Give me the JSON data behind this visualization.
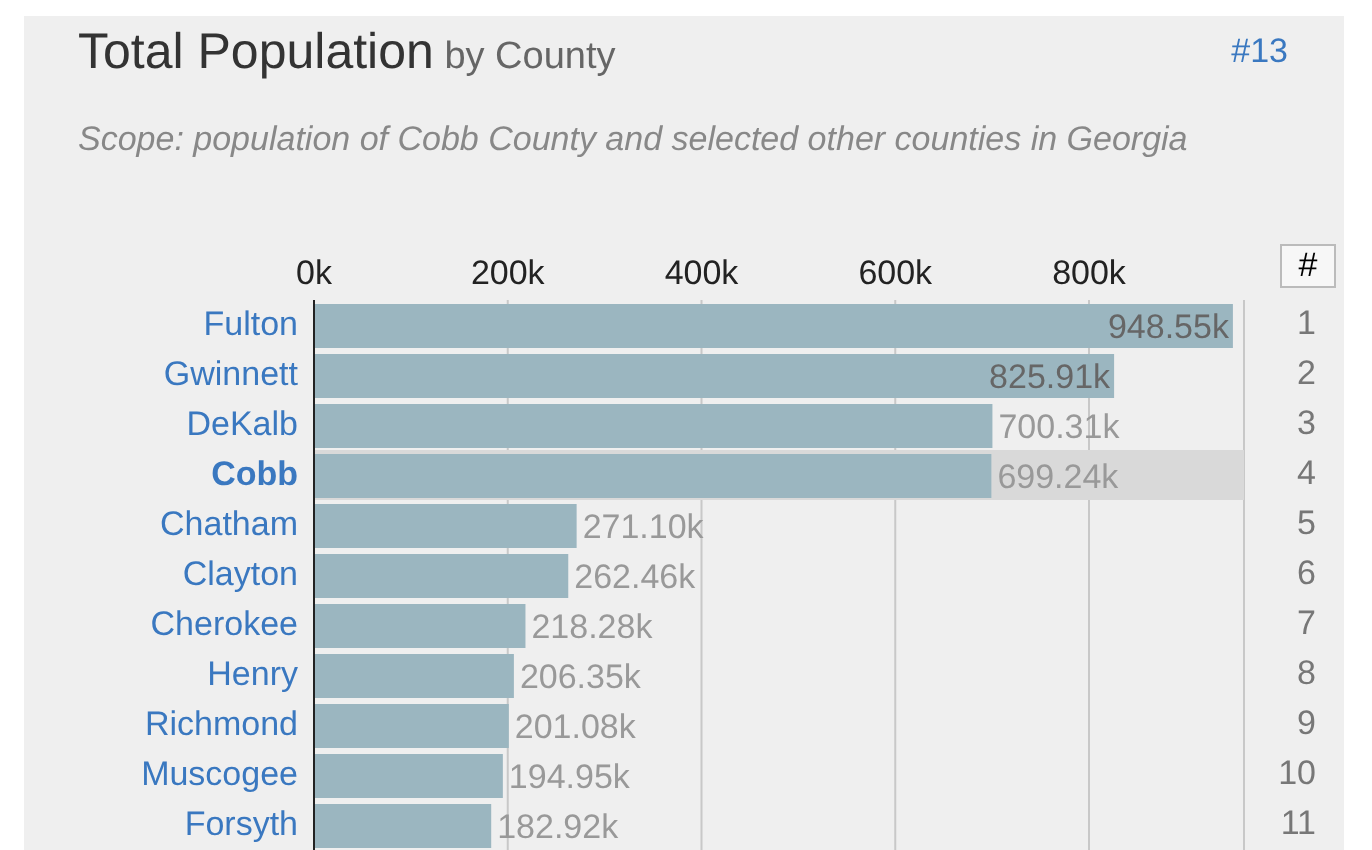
{
  "chart_data": {
    "type": "bar",
    "orientation": "horizontal",
    "title": "Total Population",
    "subtitle": "by County",
    "annotations": [
      "#13",
      "Scope: population of Cobb County and selected other counties in Georgia",
      "#",
      "1",
      "2",
      "3",
      "4",
      "5",
      "6",
      "7",
      "8",
      "9",
      "10",
      "11"
    ],
    "categories": [
      "Fulton",
      "Gwinnett",
      "DeKalb",
      "Cobb",
      "Chatham",
      "Clayton",
      "Cherokee",
      "Henry",
      "Richmond",
      "Muscogee",
      "Forsyth"
    ],
    "values": [
      948550,
      825910,
      700310,
      699240,
      271100,
      262460,
      218280,
      206350,
      201080,
      194950,
      182920
    ],
    "value_labels": [
      "948.55k",
      "825.91k",
      "700.31k",
      "699.24k",
      "271.10k",
      "262.46k",
      "218.28k",
      "206.35k",
      "201.08k",
      "194.95k",
      "182.92k"
    ],
    "color": "#9bb6c0",
    "xlim": [
      0,
      960000
    ],
    "xticks": [
      {
        "value": 0,
        "label": "0k"
      },
      {
        "value": 200000,
        "label": "200k"
      },
      {
        "value": 400000,
        "label": "400k"
      },
      {
        "value": 600000,
        "label": "600k"
      },
      {
        "value": 800000,
        "label": "800k"
      }
    ],
    "grid": "x",
    "bands": [
      {
        "axis": "y",
        "from": "Cobb",
        "to": "Cobb",
        "color": "#d9d9d9"
      }
    ]
  }
}
